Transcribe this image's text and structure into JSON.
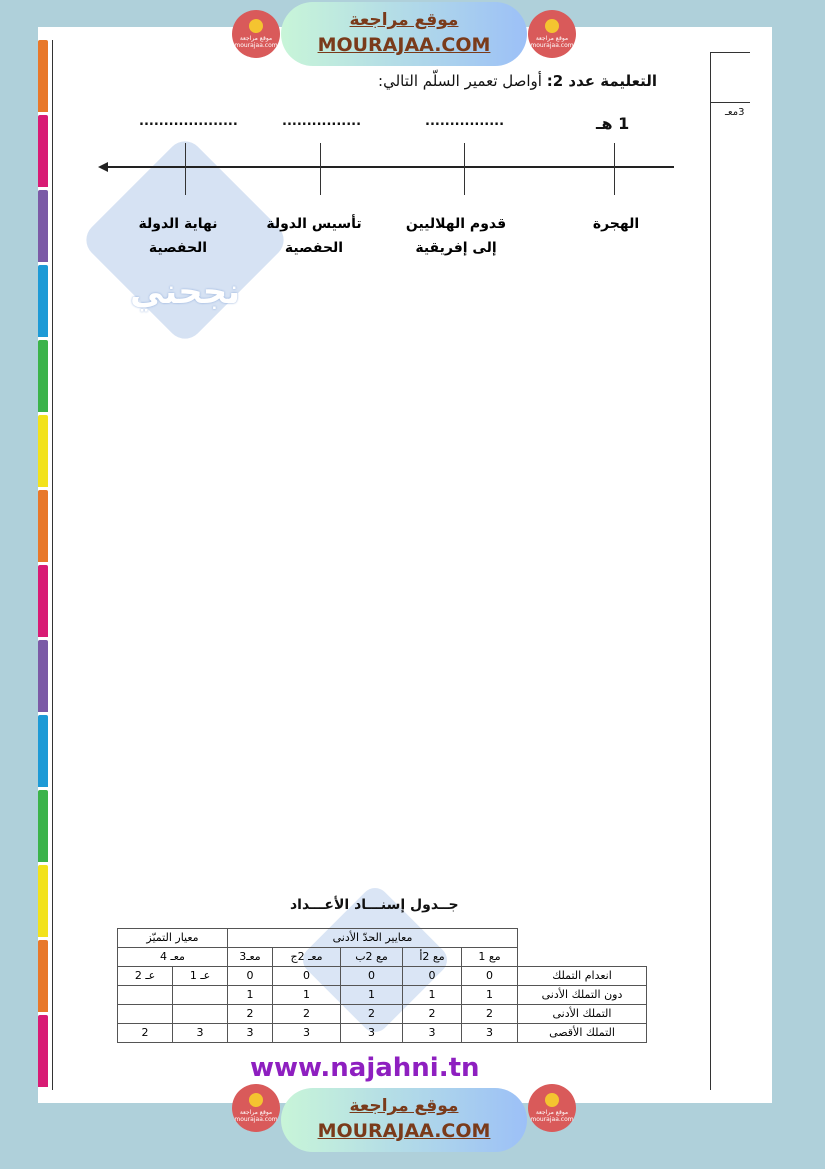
{
  "banner": {
    "arabic": "موقع مراجعة",
    "english": "MOURAJAA.COM",
    "logo_text": "موقع مراجعة mourajaa.com"
  },
  "instruction": {
    "label": "التعليمة عدد 2:",
    "text": "أواصل تعمير السلّم التالي:"
  },
  "timeline": {
    "dates": [
      "1 هـ",
      "................",
      "................",
      "...................."
    ],
    "events": [
      {
        "line1": "الهجرة",
        "line2": ""
      },
      {
        "line1": "قدوم الهلاليين",
        "line2": "إلى إفريقية"
      },
      {
        "line1": "تأسيس الدولة",
        "line2": "الحفصية"
      },
      {
        "line1": "نهاية الدولة",
        "line2": "الحفصية"
      }
    ]
  },
  "grading": {
    "title": "جــدول إسنـــاد الأعـــداد",
    "group_min": "معايير الحدّ الأدنى",
    "group_excellence": "معيار التميّز",
    "criteria": [
      "مع 1",
      "مع 2أ",
      "مع 2ب",
      "معـ 2ج",
      "معـ3",
      "معـ 4"
    ],
    "sub": [
      "عـ 1",
      "عـ 2"
    ],
    "rows": [
      {
        "label": "انعدام التملك",
        "values": [
          "0",
          "0",
          "0",
          "0",
          "0",
          "عـ 1",
          "عـ 2"
        ]
      },
      {
        "label": "دون التملك الأدنى",
        "values": [
          "1",
          "1",
          "1",
          "1",
          "1",
          "",
          ""
        ]
      },
      {
        "label": "التملك الأدنى",
        "values": [
          "2",
          "2",
          "2",
          "2",
          "2",
          "",
          ""
        ]
      },
      {
        "label": "التملك الأقصى",
        "values": [
          "3",
          "3",
          "3",
          "3",
          "3",
          "3",
          "2"
        ]
      }
    ]
  },
  "side_fragment": "3معـ",
  "watermark": {
    "brand": "نجحني",
    "url": "www.najahni.tn"
  }
}
